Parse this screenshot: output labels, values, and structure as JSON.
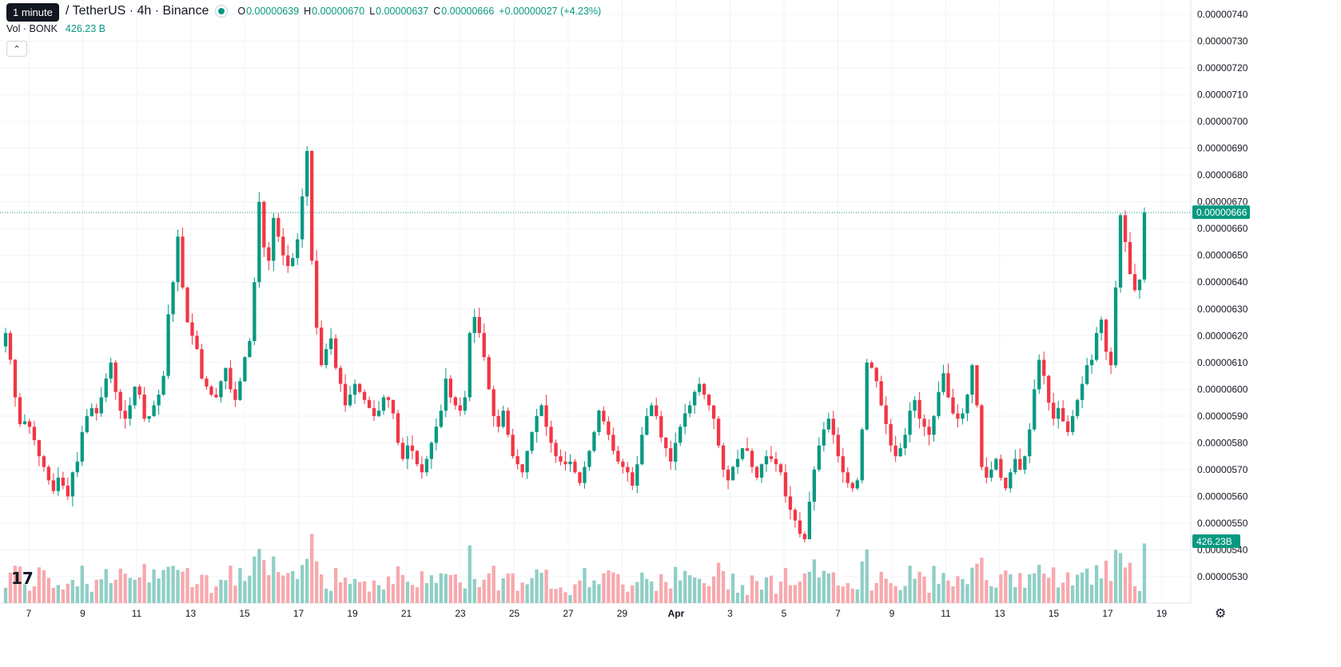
{
  "tooltip": "1 minute",
  "header": {
    "symbol": "/ TetherUS · 4h · Binance",
    "o_label": "O",
    "o_value": "0.00000639",
    "h_label": "H",
    "h_value": "0.00000670",
    "l_label": "L",
    "l_value": "0.00000637",
    "c_label": "C",
    "c_value": "0.00000666",
    "change": "+0.00000027 (+4.23%)"
  },
  "volume_legend": {
    "label": "Vol · BONK",
    "value": "426.23 B"
  },
  "collapse_icon": "chevron-up-icon",
  "logo_icon": "tradingview-logo-icon",
  "settings_icon": "gear-icon",
  "colors": {
    "up": "#089981",
    "down": "#f23645",
    "up_vol": "#8fcfc5",
    "down_vol": "#f7a9ad",
    "grid": "#f0f3fa",
    "text": "#131722"
  },
  "chart_data": {
    "type": "candlestick",
    "interval": "4h",
    "y_ticks": [
      "0.00000740",
      "0.00000730",
      "0.00000720",
      "0.00000710",
      "0.00000700",
      "0.00000690",
      "0.00000680",
      "0.00000670",
      "0.00000660",
      "0.00000650",
      "0.00000640",
      "0.00000630",
      "0.00000620",
      "0.00000610",
      "0.00000600",
      "0.00000590",
      "0.00000580",
      "0.00000570",
      "0.00000560",
      "0.00000550",
      "0.00000540",
      "0.00000530"
    ],
    "ylim": [
      5.25e-06,
      7.45e-06
    ],
    "x_ticks": [
      "7",
      "9",
      "11",
      "13",
      "15",
      "17",
      "19",
      "21",
      "23",
      "25",
      "27",
      "29",
      "Apr",
      "3",
      "5",
      "7",
      "9",
      "11",
      "13",
      "15",
      "17",
      "19"
    ],
    "last_price": "0.00000666",
    "last_volume": "426.23B",
    "closes": [
      6.21e-06,
      6.11e-06,
      5.97e-06,
      5.87e-06,
      5.88e-06,
      5.86e-06,
      5.81e-06,
      5.75e-06,
      5.71e-06,
      5.66e-06,
      5.62e-06,
      5.67e-06,
      5.64e-06,
      5.6e-06,
      5.69e-06,
      5.73e-06,
      5.84e-06,
      5.9e-06,
      5.93e-06,
      5.91e-06,
      5.97e-06,
      6.04e-06,
      6.1e-06,
      5.99e-06,
      5.92e-06,
      5.89e-06,
      5.94e-06,
      6.01e-06,
      5.98e-06,
      5.89e-06,
      5.9e-06,
      5.94e-06,
      5.98e-06,
      6.05e-06,
      6.28e-06,
      6.4e-06,
      6.57e-06,
      6.38e-06,
      6.25e-06,
      6.2e-06,
      6.15e-06,
      6.04e-06,
      6.01e-06,
      5.98e-06,
      5.97e-06,
      6.03e-06,
      6.08e-06,
      6e-06,
      5.96e-06,
      6.03e-06,
      6.12e-06,
      6.18e-06,
      6.4e-06,
      6.7e-06,
      6.53e-06,
      6.48e-06,
      6.64e-06,
      6.57e-06,
      6.5e-06,
      6.46e-06,
      6.49e-06,
      6.56e-06,
      6.72e-06,
      6.89e-06,
      6.48e-06,
      6.23e-06,
      6.09e-06,
      6.15e-06,
      6.19e-06,
      6.08e-06,
      6.02e-06,
      5.94e-06,
      5.98e-06,
      6.02e-06,
      5.99e-06,
      5.96e-06,
      5.93e-06,
      5.9e-06,
      5.92e-06,
      5.97e-06,
      5.96e-06,
      5.91e-06,
      5.8e-06,
      5.74e-06,
      5.79e-06,
      5.77e-06,
      5.72e-06,
      5.69e-06,
      5.74e-06,
      5.8e-06,
      5.86e-06,
      5.92e-06,
      6.04e-06,
      5.97e-06,
      5.94e-06,
      5.92e-06,
      5.97e-06,
      6.21e-06,
      6.27e-06,
      6.21e-06,
      6.12e-06,
      6e-06,
      5.9e-06,
      5.86e-06,
      5.92e-06,
      5.83e-06,
      5.75e-06,
      5.72e-06,
      5.69e-06,
      5.77e-06,
      5.84e-06,
      5.9e-06,
      5.94e-06,
      5.86e-06,
      5.8e-06,
      5.75e-06,
      5.73e-06,
      5.72e-06,
      5.73e-06,
      5.69e-06,
      5.65e-06,
      5.71e-06,
      5.77e-06,
      5.84e-06,
      5.92e-06,
      5.88e-06,
      5.83e-06,
      5.77e-06,
      5.73e-06,
      5.71e-06,
      5.69e-06,
      5.64e-06,
      5.72e-06,
      5.83e-06,
      5.9e-06,
      5.94e-06,
      5.9e-06,
      5.82e-06,
      5.78e-06,
      5.73e-06,
      5.8e-06,
      5.86e-06,
      5.91e-06,
      5.94e-06,
      5.99e-06,
      6.02e-06,
      5.98e-06,
      5.94e-06,
      5.89e-06,
      5.79e-06,
      5.7e-06,
      5.66e-06,
      5.71e-06,
      5.74e-06,
      5.78e-06,
      5.77e-06,
      5.71e-06,
      5.67e-06,
      5.72e-06,
      5.75e-06,
      5.74e-06,
      5.72e-06,
      5.69e-06,
      5.6e-06,
      5.55e-06,
      5.51e-06,
      5.46e-06,
      5.44e-06,
      5.58e-06,
      5.7e-06,
      5.79e-06,
      5.85e-06,
      5.89e-06,
      5.83e-06,
      5.75e-06,
      5.69e-06,
      5.65e-06,
      5.63e-06,
      5.66e-06,
      5.85e-06,
      6.1e-06,
      6.08e-06,
      6.03e-06,
      5.94e-06,
      5.87e-06,
      5.79e-06,
      5.75e-06,
      5.78e-06,
      5.83e-06,
      5.92e-06,
      5.96e-06,
      5.89e-06,
      5.86e-06,
      5.83e-06,
      5.9e-06,
      5.99e-06,
      6.06e-06,
      5.97e-06,
      5.91e-06,
      5.89e-06,
      5.91e-06,
      5.98e-06,
      6.09e-06,
      5.94e-06,
      5.71e-06,
      5.67e-06,
      5.7e-06,
      5.74e-06,
      5.67e-06,
      5.63e-06,
      5.69e-06,
      5.74e-06,
      5.7e-06,
      5.75e-06,
      5.85e-06,
      6e-06,
      6.11e-06,
      6.05e-06,
      5.95e-06,
      5.89e-06,
      5.93e-06,
      5.88e-06,
      5.84e-06,
      5.9e-06,
      5.96e-06,
      6.02e-06,
      6.09e-06,
      6.11e-06,
      6.21e-06,
      6.26e-06,
      6.14e-06,
      6.09e-06,
      6.38e-06,
      6.65e-06,
      6.55e-06,
      6.43e-06,
      6.37e-06,
      6.41e-06,
      6.66e-06
    ],
    "opens_first": 6.16e-06
  }
}
